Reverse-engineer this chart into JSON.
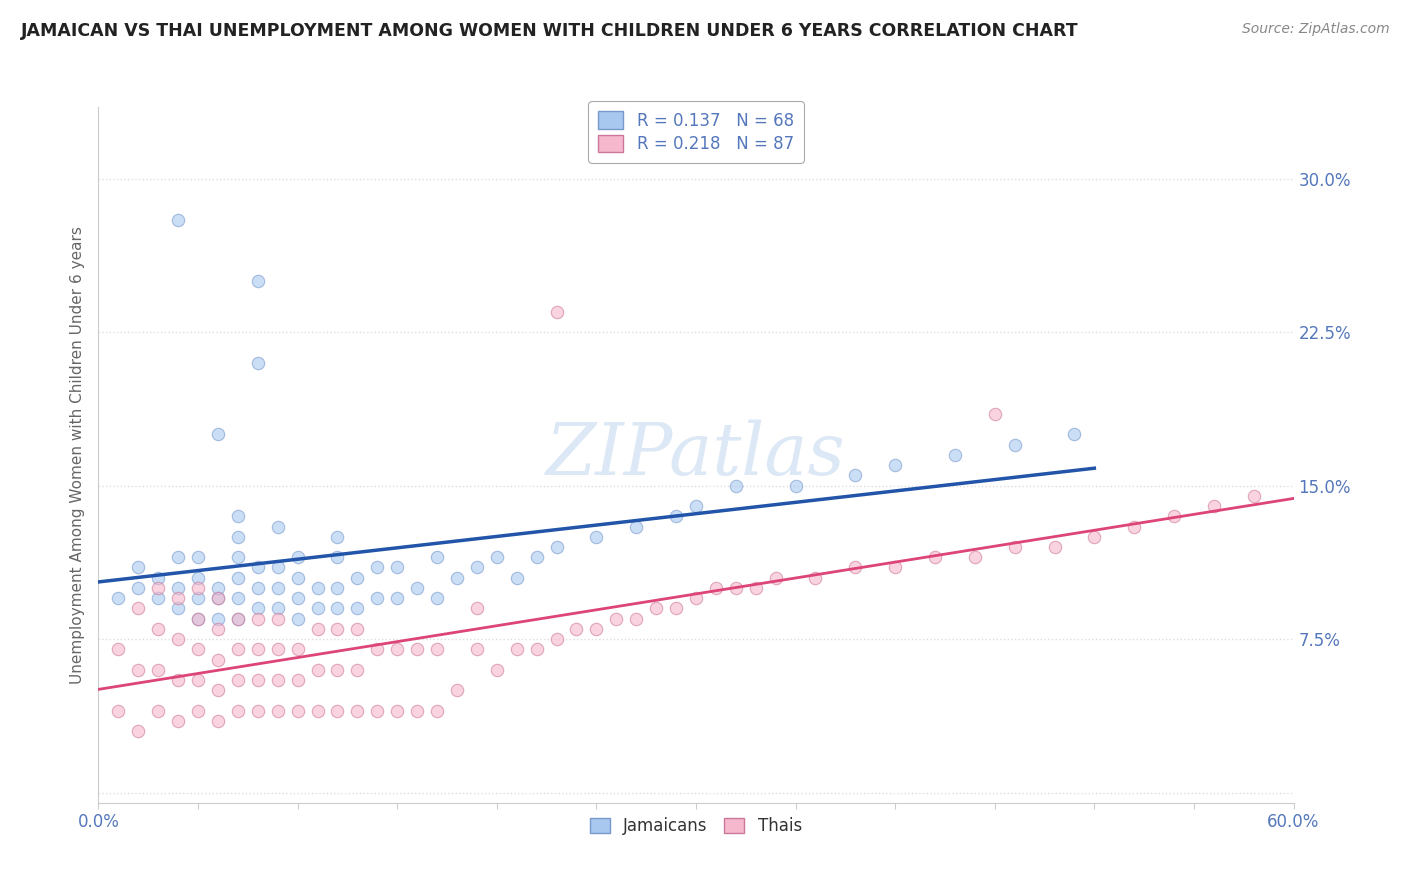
{
  "title": "JAMAICAN VS THAI UNEMPLOYMENT AMONG WOMEN WITH CHILDREN UNDER 6 YEARS CORRELATION CHART",
  "source": "Source: ZipAtlas.com",
  "ylabel": "Unemployment Among Women with Children Under 6 years",
  "yticks": [
    0.0,
    0.075,
    0.15,
    0.225,
    0.3
  ],
  "ytick_labels": [
    "",
    "7.5%",
    "15.0%",
    "22.5%",
    "30.0%"
  ],
  "xlim": [
    0.0,
    0.6
  ],
  "ylim": [
    -0.005,
    0.335
  ],
  "legend_top": [
    {
      "label": "R = 0.137   N = 68",
      "color": "#a8c8f0"
    },
    {
      "label": "R = 0.218   N = 87",
      "color": "#f0a8c0"
    }
  ],
  "jamaican_color": "#a8c8f0",
  "jamaican_edge_color": "#7799cc",
  "thai_color": "#f5b8cc",
  "thai_edge_color": "#cc7799",
  "jamaican_line_color": "#2255aa",
  "thai_line_color": "#dd4477",
  "watermark_color": "#e8eef8",
  "background_color": "#ffffff",
  "dot_alpha": 0.6,
  "dot_size": 80,
  "title_color": "#222222",
  "source_color": "#888888",
  "tick_color": "#5577bb",
  "ylabel_color": "#666666",
  "grid_color": "#dddddd",
  "jamaican_x": [
    0.01,
    0.02,
    0.02,
    0.03,
    0.03,
    0.04,
    0.04,
    0.04,
    0.04,
    0.05,
    0.05,
    0.05,
    0.05,
    0.06,
    0.06,
    0.06,
    0.06,
    0.07,
    0.07,
    0.07,
    0.07,
    0.07,
    0.07,
    0.08,
    0.08,
    0.08,
    0.08,
    0.08,
    0.09,
    0.09,
    0.09,
    0.09,
    0.1,
    0.1,
    0.1,
    0.1,
    0.11,
    0.11,
    0.12,
    0.12,
    0.12,
    0.12,
    0.13,
    0.13,
    0.14,
    0.14,
    0.15,
    0.15,
    0.16,
    0.17,
    0.17,
    0.18,
    0.19,
    0.2,
    0.21,
    0.22,
    0.23,
    0.25,
    0.27,
    0.29,
    0.3,
    0.32,
    0.35,
    0.38,
    0.4,
    0.43,
    0.46,
    0.49
  ],
  "jamaican_y": [
    0.095,
    0.1,
    0.11,
    0.095,
    0.105,
    0.09,
    0.1,
    0.115,
    0.28,
    0.085,
    0.095,
    0.105,
    0.115,
    0.085,
    0.095,
    0.1,
    0.175,
    0.085,
    0.095,
    0.105,
    0.115,
    0.125,
    0.135,
    0.09,
    0.1,
    0.11,
    0.25,
    0.21,
    0.09,
    0.1,
    0.11,
    0.13,
    0.085,
    0.095,
    0.105,
    0.115,
    0.09,
    0.1,
    0.09,
    0.1,
    0.115,
    0.125,
    0.09,
    0.105,
    0.095,
    0.11,
    0.095,
    0.11,
    0.1,
    0.095,
    0.115,
    0.105,
    0.11,
    0.115,
    0.105,
    0.115,
    0.12,
    0.125,
    0.13,
    0.135,
    0.14,
    0.15,
    0.15,
    0.155,
    0.16,
    0.165,
    0.17,
    0.175
  ],
  "thai_x": [
    0.01,
    0.01,
    0.02,
    0.02,
    0.02,
    0.03,
    0.03,
    0.03,
    0.03,
    0.04,
    0.04,
    0.04,
    0.04,
    0.05,
    0.05,
    0.05,
    0.05,
    0.05,
    0.06,
    0.06,
    0.06,
    0.06,
    0.06,
    0.07,
    0.07,
    0.07,
    0.07,
    0.08,
    0.08,
    0.08,
    0.08,
    0.09,
    0.09,
    0.09,
    0.09,
    0.1,
    0.1,
    0.1,
    0.11,
    0.11,
    0.11,
    0.12,
    0.12,
    0.12,
    0.13,
    0.13,
    0.13,
    0.14,
    0.14,
    0.15,
    0.15,
    0.16,
    0.16,
    0.17,
    0.17,
    0.18,
    0.19,
    0.19,
    0.2,
    0.21,
    0.22,
    0.23,
    0.24,
    0.25,
    0.26,
    0.27,
    0.28,
    0.29,
    0.3,
    0.32,
    0.33,
    0.34,
    0.36,
    0.38,
    0.4,
    0.42,
    0.44,
    0.46,
    0.48,
    0.5,
    0.52,
    0.54,
    0.56,
    0.58,
    0.23,
    0.31,
    0.45
  ],
  "thai_y": [
    0.04,
    0.07,
    0.03,
    0.06,
    0.09,
    0.04,
    0.06,
    0.08,
    0.1,
    0.035,
    0.055,
    0.075,
    0.095,
    0.04,
    0.055,
    0.07,
    0.085,
    0.1,
    0.035,
    0.05,
    0.065,
    0.08,
    0.095,
    0.04,
    0.055,
    0.07,
    0.085,
    0.04,
    0.055,
    0.07,
    0.085,
    0.04,
    0.055,
    0.07,
    0.085,
    0.04,
    0.055,
    0.07,
    0.04,
    0.06,
    0.08,
    0.04,
    0.06,
    0.08,
    0.04,
    0.06,
    0.08,
    0.04,
    0.07,
    0.04,
    0.07,
    0.04,
    0.07,
    0.04,
    0.07,
    0.05,
    0.07,
    0.09,
    0.06,
    0.07,
    0.07,
    0.075,
    0.08,
    0.08,
    0.085,
    0.085,
    0.09,
    0.09,
    0.095,
    0.1,
    0.1,
    0.105,
    0.105,
    0.11,
    0.11,
    0.115,
    0.115,
    0.12,
    0.12,
    0.125,
    0.13,
    0.135,
    0.14,
    0.145,
    0.235,
    0.1,
    0.185
  ]
}
